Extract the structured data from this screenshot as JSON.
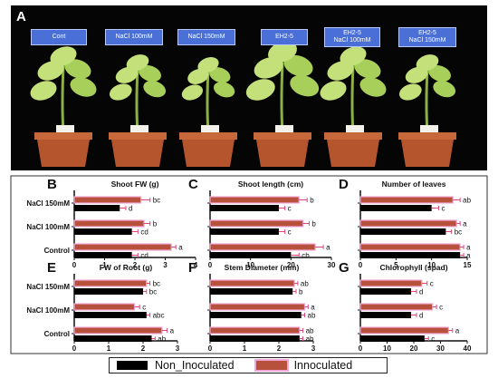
{
  "panel_a": {
    "letter": "A",
    "labels": [
      "Cont",
      "NaCl 100mM",
      "NaCl 150mM",
      "EH2-5",
      "EH2-5\nNaCl 100mM",
      "EH2-5\nNaCl 150mM"
    ]
  },
  "colors": {
    "non_inoculated": "#000000",
    "inoculated": "#b8513b",
    "inoculated_border": "#f2a8d8",
    "error_bar": "#e0457a"
  },
  "legend": {
    "non_inoculated": "Non_Inoculated",
    "inoculated": "Innoculated"
  },
  "chart_data": [
    {
      "type": "bar",
      "letter": "B",
      "title": "Shoot FW (g)",
      "categories": [
        "NaCl 150mM",
        "NaCl 100mM",
        "Control"
      ],
      "xlim": [
        0,
        4
      ],
      "xticks": [
        "0",
        "1",
        "2",
        "3",
        "4"
      ],
      "inoculated": {
        "values": [
          2.2,
          2.3,
          3.2
        ],
        "errors": [
          0.3,
          0.2,
          0.15
        ],
        "labels": [
          "bc",
          "b",
          "a"
        ]
      },
      "non_inoculated": {
        "values": [
          1.5,
          1.9,
          1.9
        ],
        "errors": [
          0.2,
          0.2,
          0.2
        ],
        "labels": [
          "d",
          "cd",
          "cd"
        ]
      }
    },
    {
      "type": "bar",
      "letter": "C",
      "title": "Shoot length (cm)",
      "categories": [
        "NaCl 150mM",
        "NaCl 100mM",
        "Control"
      ],
      "xlim": [
        0,
        30
      ],
      "xticks": [
        "0",
        "10",
        "20",
        "30"
      ],
      "inoculated": {
        "values": [
          22,
          23,
          26
        ],
        "errors": [
          2,
          1.5,
          2
        ],
        "labels": [
          "b",
          "b",
          "a"
        ]
      },
      "non_inoculated": {
        "values": [
          17,
          17,
          20
        ],
        "errors": [
          1.5,
          1.5,
          2
        ],
        "labels": [
          "c",
          "c",
          "cb"
        ]
      }
    },
    {
      "type": "bar",
      "letter": "D",
      "title": "Number of leaves",
      "categories": [
        "NaCl 150mM",
        "NaCl 100mM",
        "Control"
      ],
      "xlim": [
        0,
        15
      ],
      "xticks": [
        "0",
        "5",
        "10",
        "15"
      ],
      "inoculated": {
        "values": [
          13,
          13.5,
          14
        ],
        "errors": [
          1,
          0.5,
          0.5
        ],
        "labels": [
          "ab",
          "a",
          "a"
        ]
      },
      "non_inoculated": {
        "values": [
          10,
          12,
          14
        ],
        "errors": [
          1,
          0.8,
          0.5
        ],
        "labels": [
          "c",
          "bc",
          "a"
        ]
      }
    },
    {
      "type": "bar",
      "letter": "E",
      "title": "FW of Root (g)",
      "categories": [
        "NaCl 150mM",
        "NaCl 100mM",
        "Control"
      ],
      "xlim": [
        0,
        3
      ],
      "xticks": [
        "0",
        "1",
        "2",
        "3"
      ],
      "inoculated": {
        "values": [
          2.1,
          1.75,
          2.55
        ],
        "errors": [
          0.1,
          0.15,
          0.15
        ],
        "labels": [
          "bc",
          "c",
          "a"
        ]
      },
      "non_inoculated": {
        "values": [
          2.0,
          2.1,
          2.25
        ],
        "errors": [
          0.1,
          0.1,
          0.1
        ],
        "labels": [
          "bc",
          "abc",
          "ab"
        ]
      }
    },
    {
      "type": "bar",
      "letter": "F",
      "title": "Stem Diameter (mm)",
      "categories": [
        "NaCl 150mM",
        "NaCl 100mM",
        "Control"
      ],
      "xlim": [
        0,
        3
      ],
      "xticks": [
        "0",
        "1",
        "2",
        "3"
      ],
      "inoculated": {
        "values": [
          2.45,
          2.75,
          2.6
        ],
        "errors": [
          0.1,
          0.1,
          0.1
        ],
        "labels": [
          "ab",
          "a",
          "ab"
        ]
      },
      "non_inoculated": {
        "values": [
          2.4,
          2.65,
          2.6
        ],
        "errors": [
          0.1,
          0.1,
          0.1
        ],
        "labels": [
          "b",
          "ab",
          "ab"
        ]
      }
    },
    {
      "type": "bar",
      "letter": "G",
      "title": "Chlorophyll (spad)",
      "categories": [
        "NaCl 150mM",
        "NaCl 100mM",
        "Control"
      ],
      "xlim": [
        0,
        40
      ],
      "xticks": [
        "0",
        "10",
        "20",
        "30",
        "40"
      ],
      "inoculated": {
        "values": [
          23,
          27,
          33
        ],
        "errors": [
          2,
          1.5,
          1.5
        ],
        "labels": [
          "c",
          "c",
          "a"
        ]
      },
      "non_inoculated": {
        "values": [
          19,
          19,
          24
        ],
        "errors": [
          2,
          2,
          1.5
        ],
        "labels": [
          "d",
          "d",
          "c"
        ]
      }
    }
  ]
}
